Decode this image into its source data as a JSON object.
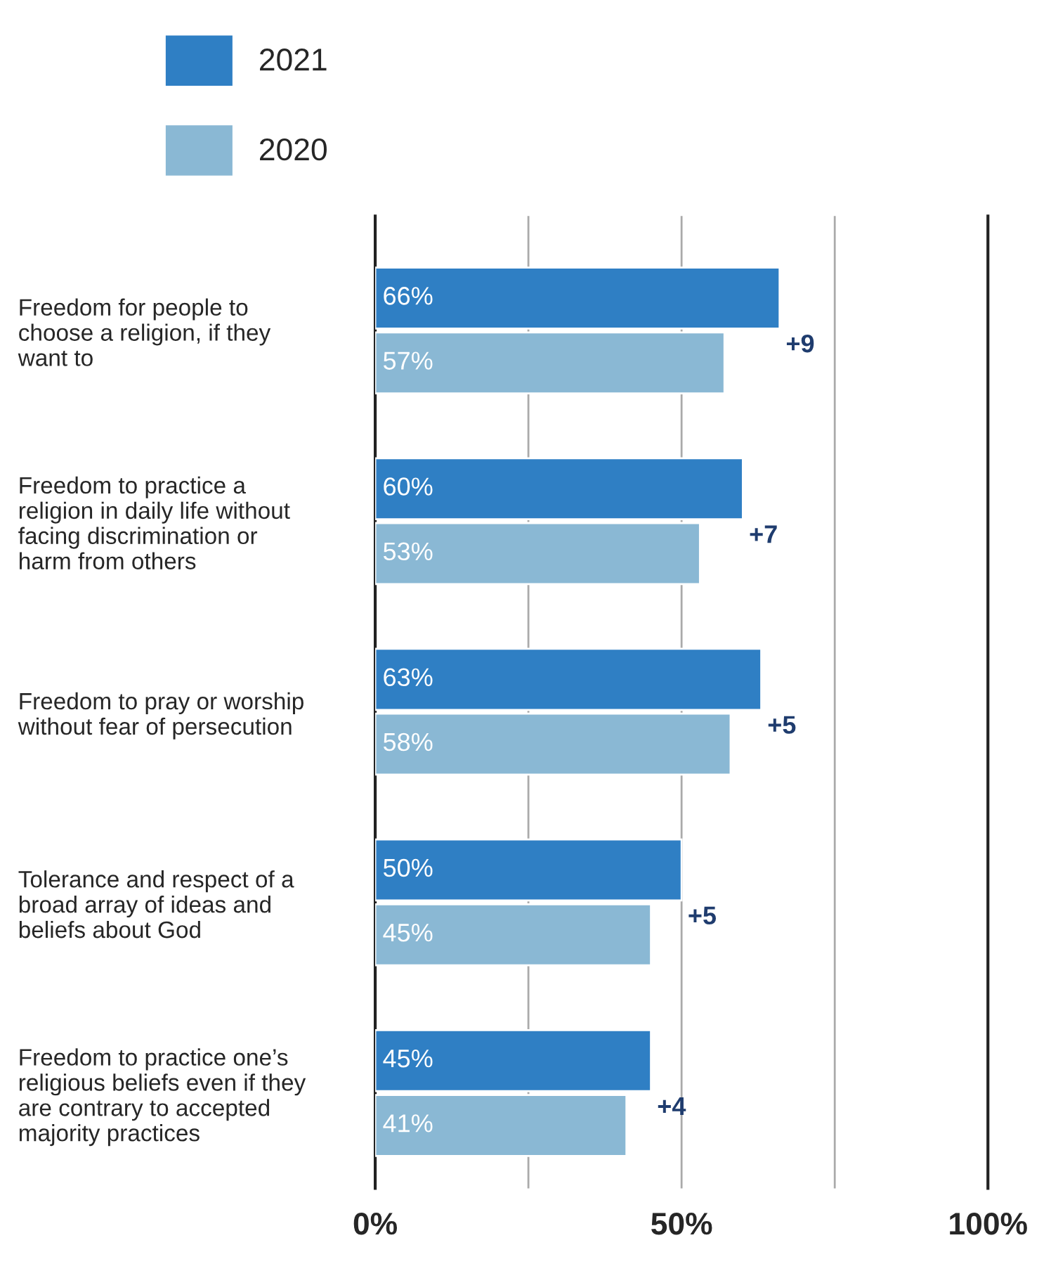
{
  "chart_data": {
    "type": "bar",
    "orientation": "horizontal",
    "categories": [
      "Freedom for people to\nchoose a religion, if they\nwant to",
      "Freedom to practice a\nreligion in daily life without\nfacing discrimination or\nharm from others",
      "Freedom to pray or worship\nwithout fear of persecution",
      "Tolerance and respect of a\nbroad array of ideas and\nbeliefs about God",
      "Freedom to practice one’s\nreligious beliefs even if they\nare contrary to accepted\nmajority practices"
    ],
    "series": [
      {
        "name": "2021",
        "color": "#2f7fc4",
        "values": [
          66,
          60,
          63,
          50,
          45
        ],
        "value_labels": [
          "66%",
          "60%",
          "63%",
          "50%",
          "45%"
        ]
      },
      {
        "name": "2020",
        "color": "#8ab8d4",
        "values": [
          57,
          53,
          58,
          45,
          41
        ],
        "value_labels": [
          "57%",
          "53%",
          "58%",
          "45%",
          "41%"
        ]
      }
    ],
    "annotations": [
      "+9",
      "+7",
      "+5",
      "+5",
      "+4"
    ],
    "xlim": [
      0,
      100
    ],
    "xticks": [
      {
        "value": 0,
        "label": "0%"
      },
      {
        "value": 25,
        "label": null
      },
      {
        "value": 50,
        "label": "50%"
      },
      {
        "value": 75,
        "label": null
      },
      {
        "value": 100,
        "label": "100%"
      }
    ],
    "grid": "x",
    "legend": "top left"
  }
}
